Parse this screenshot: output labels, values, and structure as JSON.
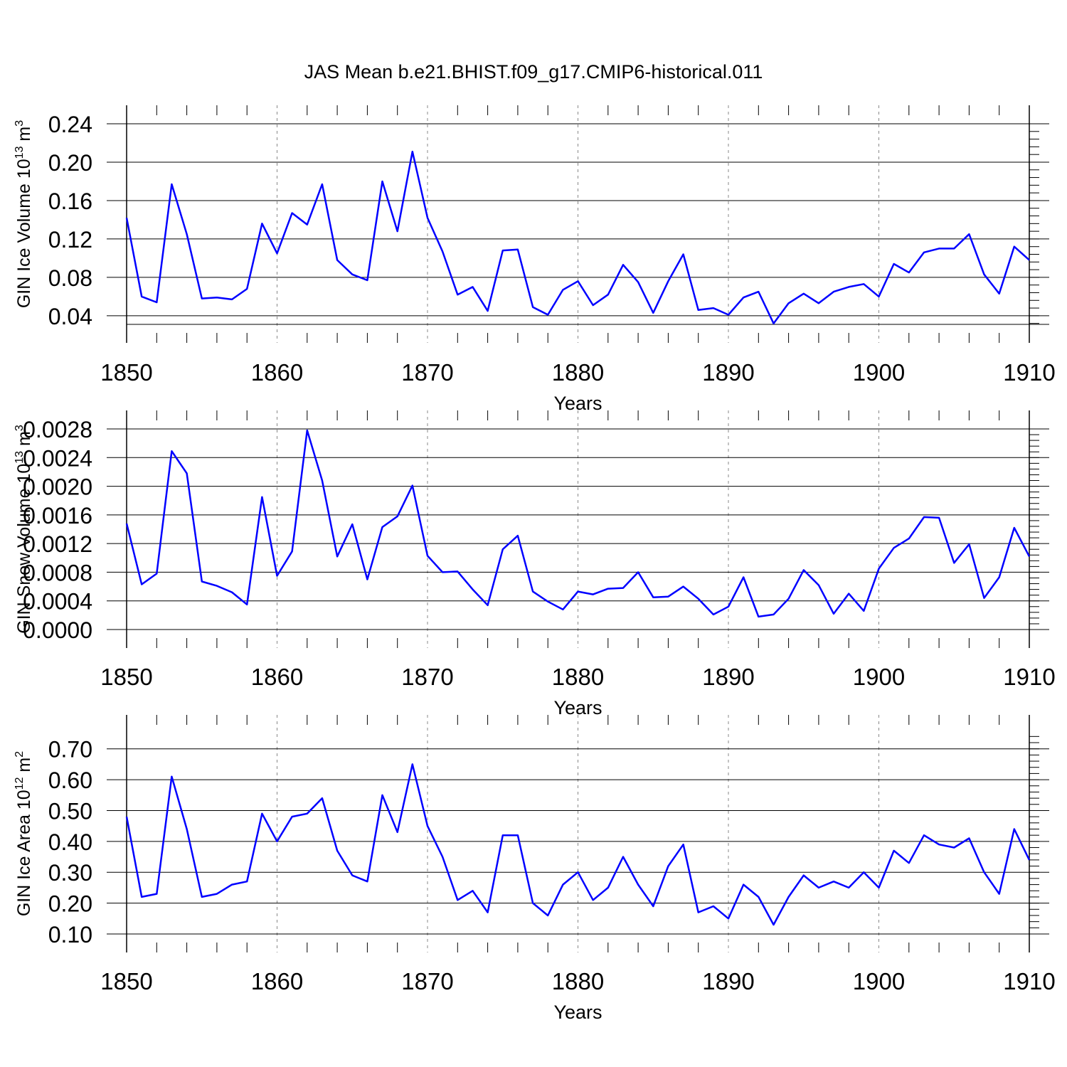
{
  "figure_title": "JAS Mean b.e21.BHIST.f09_g17.CMIP6-historical.011",
  "chart_data": [
    {
      "type": "line",
      "title": "JAS Mean b.e21.BHIST.f09_g17.CMIP6-historical.011",
      "xlabel": "Years",
      "ylabel": "GIN Ice Volume 10",
      "ylabel_exponent": "13",
      "ylabel_unit": "m",
      "ylabel_unit_exponent": "3",
      "xlim": [
        1850,
        1910
      ],
      "ylim": [
        0.031,
        0.24
      ],
      "x_ticks": [
        "1850",
        "1860",
        "1870",
        "1880",
        "1890",
        "1900",
        "1910"
      ],
      "y_ticks": [
        "0.04",
        "0.08",
        "0.12",
        "0.16",
        "0.20",
        "0.24"
      ],
      "line_color": "#0000ff",
      "series": [
        {
          "name": "GIN Ice Volume",
          "x_start": 1850,
          "values": [
            0.142,
            0.06,
            0.054,
            0.177,
            0.125,
            0.058,
            0.059,
            0.057,
            0.068,
            0.136,
            0.105,
            0.147,
            0.135,
            0.177,
            0.098,
            0.083,
            0.077,
            0.18,
            0.128,
            0.211,
            0.142,
            0.107,
            0.062,
            0.07,
            0.045,
            0.108,
            0.109,
            0.049,
            0.041,
            0.067,
            0.076,
            0.051,
            0.062,
            0.093,
            0.075,
            0.043,
            0.076,
            0.104,
            0.046,
            0.048,
            0.041,
            0.059,
            0.065,
            0.032,
            0.053,
            0.063,
            0.053,
            0.065,
            0.07,
            0.073,
            0.06,
            0.094,
            0.085,
            0.106,
            0.11,
            0.11,
            0.125,
            0.083,
            0.063,
            0.112,
            0.098
          ]
        }
      ]
    },
    {
      "type": "line",
      "title": "",
      "xlabel": "Years",
      "ylabel": "GIN Snow Volume 10",
      "ylabel_exponent": "13",
      "ylabel_unit": "m",
      "ylabel_unit_exponent": "3",
      "xlim": [
        1850,
        1910
      ],
      "ylim": [
        0.0,
        0.0028
      ],
      "x_ticks": [
        "1850",
        "1860",
        "1870",
        "1880",
        "1890",
        "1900",
        "1910"
      ],
      "y_ticks": [
        "0.0000",
        "0.0004",
        "0.0008",
        "0.0012",
        "0.0016",
        "0.0020",
        "0.0024",
        "0.0028"
      ],
      "line_color": "#0000ff",
      "series": [
        {
          "name": "GIN Snow Volume",
          "x_start": 1850,
          "values": [
            0.00148,
            0.00063,
            0.00078,
            0.00249,
            0.00218,
            0.00067,
            0.00061,
            0.00052,
            0.00035,
            0.00185,
            0.00075,
            0.00109,
            0.00278,
            0.00208,
            0.00102,
            0.00147,
            0.0007,
            0.00143,
            0.00158,
            0.00201,
            0.00103,
            0.0008,
            0.00081,
            0.00056,
            0.00034,
            0.00112,
            0.00131,
            0.00053,
            0.00039,
            0.00028,
            0.00053,
            0.00049,
            0.00057,
            0.00058,
            0.0008,
            0.00045,
            0.00046,
            0.0006,
            0.00043,
            0.00021,
            0.00032,
            0.00073,
            0.00018,
            0.00021,
            0.00043,
            0.00083,
            0.00062,
            0.00022,
            0.0005,
            0.00026,
            0.00085,
            0.00114,
            0.00127,
            0.00157,
            0.00156,
            0.00093,
            0.00119,
            0.00044,
            0.00073,
            0.00142,
            0.00102
          ]
        }
      ]
    },
    {
      "type": "line",
      "title": "",
      "xlabel": "Years",
      "ylabel": "GIN Ice Area 10",
      "ylabel_exponent": "12",
      "ylabel_unit": "m",
      "ylabel_unit_exponent": "2",
      "xlim": [
        1850,
        1910
      ],
      "ylim": [
        0.1,
        0.75
      ],
      "x_ticks": [
        "1850",
        "1860",
        "1870",
        "1880",
        "1890",
        "1900",
        "1910"
      ],
      "y_ticks": [
        "0.10",
        "0.20",
        "0.30",
        "0.40",
        "0.50",
        "0.60",
        "0.70"
      ],
      "line_color": "#0000ff",
      "series": [
        {
          "name": "GIN Ice Area",
          "x_start": 1850,
          "values": [
            0.48,
            0.22,
            0.23,
            0.61,
            0.44,
            0.22,
            0.23,
            0.26,
            0.27,
            0.49,
            0.4,
            0.48,
            0.49,
            0.54,
            0.37,
            0.29,
            0.27,
            0.55,
            0.43,
            0.65,
            0.45,
            0.35,
            0.21,
            0.24,
            0.17,
            0.42,
            0.42,
            0.2,
            0.16,
            0.26,
            0.3,
            0.21,
            0.25,
            0.35,
            0.26,
            0.19,
            0.32,
            0.39,
            0.17,
            0.19,
            0.15,
            0.26,
            0.22,
            0.13,
            0.22,
            0.29,
            0.25,
            0.27,
            0.25,
            0.3,
            0.25,
            0.37,
            0.33,
            0.42,
            0.39,
            0.38,
            0.41,
            0.3,
            0.23,
            0.44,
            0.34
          ]
        }
      ]
    }
  ]
}
